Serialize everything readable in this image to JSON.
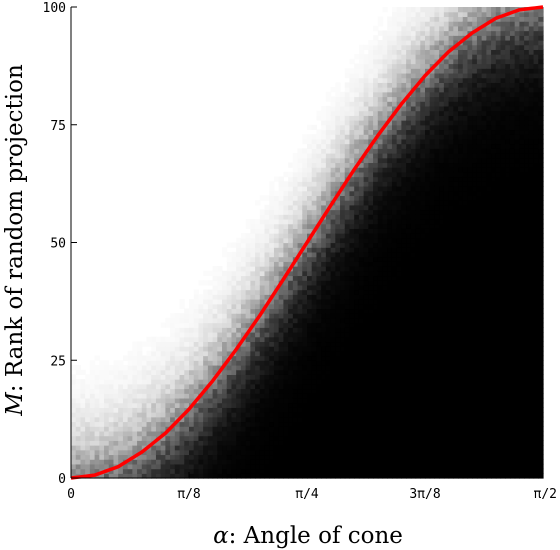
{
  "chart_data": {
    "type": "heatmap",
    "xlabel_symbol": "α",
    "xlabel_text": ": Angle of cone",
    "ylabel_symbol": "M",
    "ylabel_text": ": Rank of random projection",
    "xlim": [
      0,
      1.5707963
    ],
    "ylim": [
      0,
      100
    ],
    "x_ticks": [
      {
        "value": 0,
        "label": "0"
      },
      {
        "value": 0.3926991,
        "label": "π/8"
      },
      {
        "value": 0.7853982,
        "label": "π/4"
      },
      {
        "value": 1.1780972,
        "label": "3π/8"
      },
      {
        "value": 1.5707963,
        "label": "π/2"
      }
    ],
    "y_ticks": [
      {
        "value": 0,
        "label": "0"
      },
      {
        "value": 25,
        "label": "25"
      },
      {
        "value": 50,
        "label": "50"
      },
      {
        "value": 75,
        "label": "75"
      },
      {
        "value": 100,
        "label": "100"
      }
    ],
    "heatmap_grid": {
      "columns": 100,
      "rows": 100
    },
    "heatmap_colors": {
      "below_curve": "#000000",
      "above_curve": "#ffffff"
    },
    "transition_width": 12,
    "curve": {
      "color": "#ff0000",
      "x": [
        0,
        0.0785,
        0.1571,
        0.2356,
        0.3142,
        0.3927,
        0.4712,
        0.5498,
        0.6283,
        0.7069,
        0.7854,
        0.8639,
        0.9425,
        1.021,
        1.0996,
        1.1781,
        1.2566,
        1.3352,
        1.4137,
        1.4923,
        1.5708
      ],
      "y": [
        0,
        0.6,
        2.4,
        5.5,
        9.5,
        14.6,
        20.6,
        27.3,
        34.5,
        42.2,
        50.0,
        57.8,
        65.5,
        72.7,
        79.4,
        85.4,
        90.5,
        94.5,
        97.6,
        99.4,
        100
      ]
    }
  }
}
